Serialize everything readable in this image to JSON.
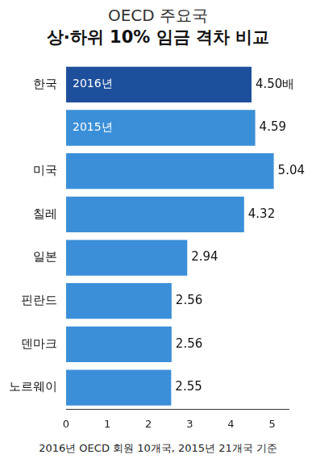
{
  "chart_data": {
    "type": "bar",
    "orientation": "horizontal",
    "title": "OECD 주요국",
    "subtitle": "상·하위 10% 임금 격차 비교",
    "footnote": "2016년 OECD 회원 10개국, 2015년 21개국 기준",
    "categories": [
      "한국",
      null,
      "미국",
      "칠레",
      "일본",
      "핀란드",
      "덴마크",
      "노르웨이"
    ],
    "values": [
      4.5,
      4.59,
      5.04,
      4.32,
      2.94,
      2.56,
      2.56,
      2.55
    ],
    "value_labels": [
      "4.50배",
      "4.59",
      "5.04",
      "4.32",
      "2.94",
      "2.56",
      "2.56",
      "2.55"
    ],
    "bar_texts": [
      "2016년",
      "2015년",
      null,
      null,
      null,
      null,
      null,
      null
    ],
    "colors": [
      "#1e4f9c",
      "#3b8fd8",
      "#3b8fd8",
      "#3b8fd8",
      "#3b8fd8",
      "#3b8fd8",
      "#3b8fd8",
      "#3b8fd8"
    ],
    "xlim": [
      0,
      5.4
    ],
    "xticks": [
      0,
      1,
      2,
      3,
      4,
      5
    ],
    "data_labels": true,
    "grid": false
  }
}
